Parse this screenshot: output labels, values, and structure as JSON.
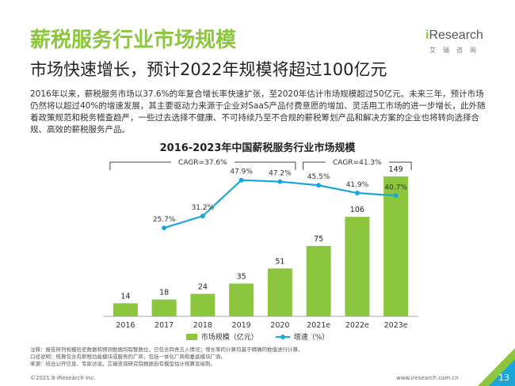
{
  "page": {
    "title": "薪税服务行业市场规模",
    "subtitle": "市场快速增长，预计2022年规模将超过100亿元",
    "paragraph": "2016年以来，薪税服务市场以37.6%的年复合增长率快速扩张，至2020年估计市场规模超过50亿元。未来三年，预计市场仍然将以超过40%的增速发展，其主要驱动力来源于企业对SaaS产品付费意愿的增加、灵活用工市场的进一步增长，此外随着政策规范和税务稽查趋严，一些过去选择不健康、不可持续乃至不合规的薪税筹划产品和解决方案的企业也将转向选择合规、高效的薪税服务产品。",
    "notes": [
      "注释：报告所列规模历史数据和预测数据均取整数位，已包含四舍五入情况；增长率的计算均基于精确的数值进行计算。",
      "口径说明：核算包含有薪税功能模块或服务的厂商，包括一体化厂商和垂直模块厂商。",
      "来源：结合公开信息、专家访谈，艾瑞咨询研究院根据自有模型估计核算及绘制。"
    ],
    "footer_left": "©2021.8 iResearch Inc.",
    "footer_right": "www.iresearch.com.cn",
    "page_number": "13"
  },
  "logo": {
    "prefix": "i",
    "name": "Research",
    "cn": "艾瑞咨询"
  },
  "colors": {
    "accent": "#8cc63f",
    "bar": "#8cc63f",
    "line": "#1aa7d8"
  },
  "chart_data": {
    "type": "bar",
    "title": "2016-2023年中国薪税服务行业市场规模",
    "categories": [
      "2016",
      "2017",
      "2018",
      "2019",
      "2020",
      "2021e",
      "2022e",
      "2023e"
    ],
    "series": [
      {
        "name": "市场规模（亿元）",
        "type": "bar",
        "values": [
          14,
          18,
          24,
          35,
          51,
          75,
          106,
          149
        ]
      },
      {
        "name": "增速（%）",
        "type": "line",
        "values": [
          null,
          25.7,
          31.2,
          47.9,
          47.2,
          45.5,
          41.9,
          40.7
        ],
        "labels": [
          "",
          "25.7%",
          "31.2%",
          "47.9%",
          "47.2%",
          "45.5%",
          "41.9%",
          "40.7%"
        ]
      }
    ],
    "annotations": [
      {
        "text": "CAGR=37.6%",
        "from": "2016",
        "to": "2020"
      },
      {
        "text": "CAGR=41.3%",
        "from": "2021e",
        "to": "2023e"
      }
    ],
    "ylim_bar": [
      0,
      160
    ],
    "ylim_line": [
      0,
      60
    ]
  }
}
